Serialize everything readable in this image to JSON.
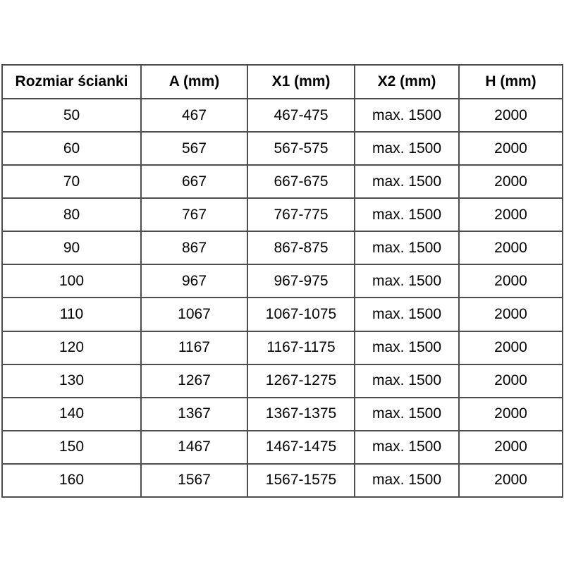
{
  "table": {
    "headers": {
      "size": "Rozmiar ścianki",
      "a": "A (mm)",
      "x1": "X1 (mm)",
      "x2": "X2 (mm)",
      "h": "H (mm)"
    },
    "rows": [
      {
        "size": "50",
        "a": "467",
        "x1": "467-475",
        "x2": "max. 1500",
        "h": "2000"
      },
      {
        "size": "60",
        "a": "567",
        "x1": "567-575",
        "x2": "max. 1500",
        "h": "2000"
      },
      {
        "size": "70",
        "a": "667",
        "x1": "667-675",
        "x2": "max. 1500",
        "h": "2000"
      },
      {
        "size": "80",
        "a": "767",
        "x1": "767-775",
        "x2": "max. 1500",
        "h": "2000"
      },
      {
        "size": "90",
        "a": "867",
        "x1": "867-875",
        "x2": "max. 1500",
        "h": "2000"
      },
      {
        "size": "100",
        "a": "967",
        "x1": "967-975",
        "x2": "max. 1500",
        "h": "2000"
      },
      {
        "size": "110",
        "a": "1067",
        "x1": "1067-1075",
        "x2": "max. 1500",
        "h": "2000"
      },
      {
        "size": "120",
        "a": "1167",
        "x1": "1167-1175",
        "x2": "max. 1500",
        "h": "2000"
      },
      {
        "size": "130",
        "a": "1267",
        "x1": "1267-1275",
        "x2": "max. 1500",
        "h": "2000"
      },
      {
        "size": "140",
        "a": "1367",
        "x1": "1367-1375",
        "x2": "max. 1500",
        "h": "2000"
      },
      {
        "size": "150",
        "a": "1467",
        "x1": "1467-1475",
        "x2": "max. 1500",
        "h": "2000"
      },
      {
        "size": "160",
        "a": "1567",
        "x1": "1567-1575",
        "x2": "max. 1500",
        "h": "2000"
      }
    ]
  },
  "colors": {
    "border": "#4d4d4d",
    "text": "#000000",
    "background": "#ffffff"
  }
}
